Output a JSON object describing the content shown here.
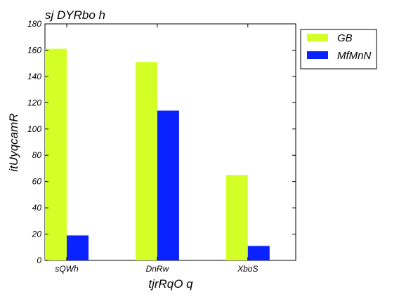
{
  "chart_data": {
    "type": "bar",
    "title": "sj DYRbo  h",
    "xlabel": "tjrRqO  q",
    "ylabel": "itUyqcamR",
    "categories": [
      "sQWh",
      "DnRw",
      "XboS"
    ],
    "series": [
      {
        "name": "GB",
        "values": [
          161,
          151,
          65
        ],
        "color": "#d4ff26"
      },
      {
        "name": "MfMnN",
        "values": [
          19,
          114,
          11
        ],
        "color": "#0a22ff"
      }
    ],
    "ylim": [
      0,
      180
    ],
    "yticks": [
      0,
      20,
      40,
      60,
      80,
      100,
      120,
      140,
      160,
      180
    ],
    "grid": false,
    "legend_position": "top-right"
  }
}
